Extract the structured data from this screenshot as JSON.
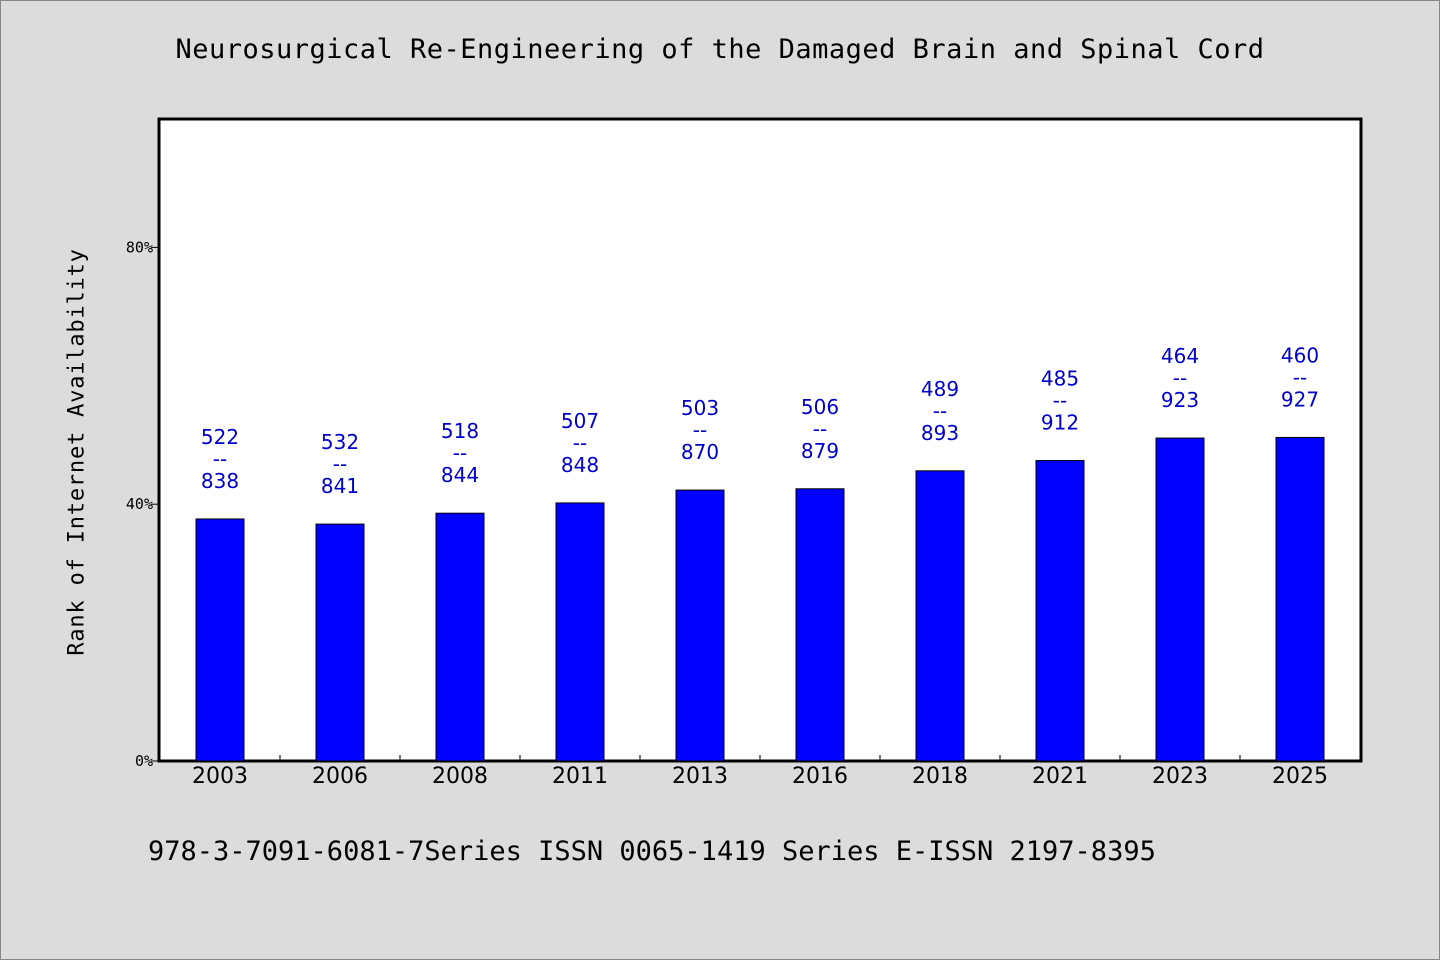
{
  "footer": "978-3-7091-6081-7Series ISSN 0065-1419 Series E-ISSN 2197-8395",
  "colors": {
    "background": "#dcdcdc",
    "plot_background": "#ffffff",
    "bar": "#0000ff",
    "bar_label": "#0000cc"
  },
  "chart_data": {
    "type": "bar",
    "title": "Neurosurgical Re-Engineering of the Damaged Brain and Spinal Cord",
    "ylabel": "Rank of Internet Availability",
    "xlabel": "",
    "ylim": [
      0,
      100
    ],
    "yticks": [
      0,
      40,
      80
    ],
    "ytick_labels": [
      "0%",
      "40%",
      "80%"
    ],
    "categories": [
      "2003",
      "2006",
      "2008",
      "2011",
      "2013",
      "2016",
      "2018",
      "2021",
      "2023",
      "2025"
    ],
    "values": [
      37.7,
      36.9,
      38.6,
      40.2,
      42.2,
      42.4,
      45.2,
      46.8,
      50.3,
      50.4
    ],
    "data_labels": [
      [
        "522",
        "--",
        "838"
      ],
      [
        "532",
        "--",
        "841"
      ],
      [
        "518",
        "--",
        "844"
      ],
      [
        "507",
        "--",
        "848"
      ],
      [
        "503",
        "--",
        "870"
      ],
      [
        "506",
        "--",
        "879"
      ],
      [
        "489",
        "--",
        "893"
      ],
      [
        "485",
        "--",
        "912"
      ],
      [
        "464",
        "--",
        "923"
      ],
      [
        "460",
        "--",
        "927"
      ]
    ],
    "grid": false,
    "legend": "none"
  }
}
